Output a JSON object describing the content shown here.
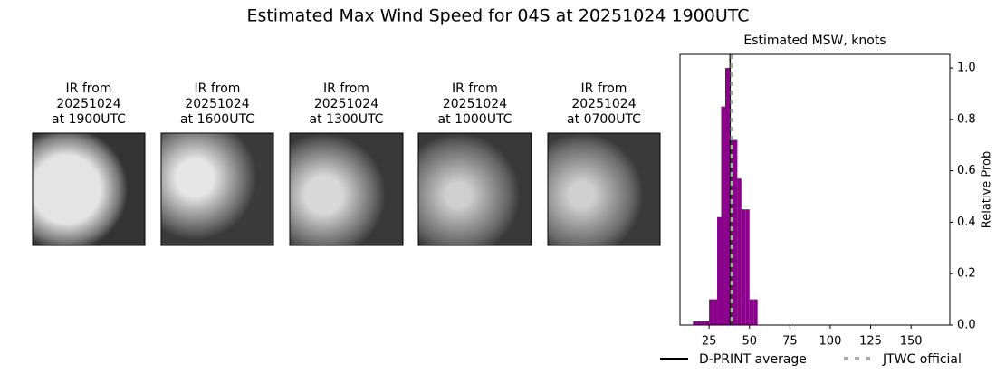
{
  "title": "Estimated Max Wind Speed for 04S at 20251024 1900UTC",
  "panels": [
    {
      "lines": [
        "IR from",
        "20251024",
        "at 1900UTC"
      ]
    },
    {
      "lines": [
        "IR from",
        "20251024",
        "at 1600UTC"
      ]
    },
    {
      "lines": [
        "IR from",
        "20251024",
        "at 1300UTC"
      ]
    },
    {
      "lines": [
        "IR from",
        "20251024",
        "at 1000UTC"
      ]
    },
    {
      "lines": [
        "IR from",
        "20251024",
        "at 0700UTC"
      ]
    }
  ],
  "chart_data": {
    "type": "histogram",
    "title": "Estimated MSW, knots",
    "ylabel": "Relative Prob",
    "color": "#8b008b",
    "bins": [
      15,
      17.5,
      20,
      22.5,
      25,
      27.5,
      30,
      32.5,
      35,
      37.5,
      40,
      42.5,
      45,
      47.5,
      50,
      52.5,
      55
    ],
    "counts": [
      0.015,
      0.015,
      0.015,
      0.015,
      0.1,
      0.1,
      0.42,
      0.85,
      1.0,
      0.72,
      0.72,
      0.57,
      0.45,
      0.45,
      0.1,
      0.1
    ],
    "xlim": [
      7,
      174
    ],
    "xticks": [
      25,
      50,
      75,
      100,
      125,
      150
    ],
    "ylim": [
      0,
      1.053
    ],
    "yticks": [
      {
        "value": 0,
        "label": "0.0"
      },
      0.2,
      0.4,
      0.6,
      0.8,
      {
        "value": 1,
        "label": "1.0"
      }
    ],
    "lines": [
      {
        "name": "D-PRINT average",
        "value": 38,
        "color": "#000000",
        "style": "solid"
      },
      {
        "name": "JTWC official",
        "value": 39,
        "color": "#aaaaaa",
        "style": "dashed"
      }
    ]
  }
}
